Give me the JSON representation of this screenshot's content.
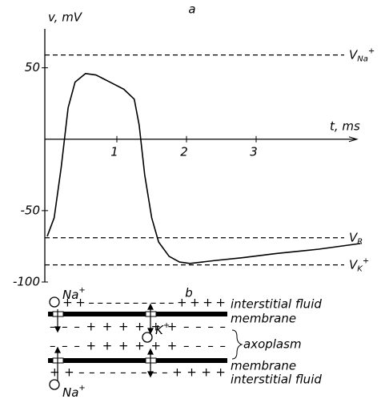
{
  "chart_data": {
    "type": "line",
    "title": "a",
    "y_label": "v, mV",
    "x_label": "t, ms",
    "x": [
      0,
      0.1,
      0.2,
      0.3,
      0.4,
      0.55,
      0.7,
      0.9,
      1.1,
      1.25,
      1.32,
      1.4,
      1.5,
      1.6,
      1.75,
      1.9,
      2.05,
      2.4,
      2.8,
      3.3,
      3.9,
      4.5
    ],
    "series": [
      {
        "color": "#000000",
        "values": [
          -68,
          -55,
          -20,
          22,
          40,
          46,
          45,
          40,
          35,
          28,
          10,
          -25,
          -55,
          -72,
          -82,
          -86,
          -87,
          -85,
          -83,
          -80,
          -77,
          -73
        ]
      }
    ],
    "xlim": [
      0,
      4.6
    ],
    "ylim": [
      -100,
      70
    ],
    "xticks": [
      1,
      2,
      3
    ],
    "yticks": [
      -100,
      -50,
      50
    ],
    "reference_lines": [
      {
        "symbol": "V",
        "subscript": "Na",
        "superscript": "+",
        "value": 59
      },
      {
        "symbol": "V",
        "subscript": "R",
        "superscript": "",
        "value": -69
      },
      {
        "symbol": "V",
        "subscript": "K",
        "superscript": "+",
        "value": -88
      }
    ]
  },
  "diagram": {
    "title": "b",
    "ions": [
      {
        "symbol": "Na",
        "charge": "+"
      },
      {
        "symbol": "K",
        "charge": "+"
      },
      {
        "symbol": "Na",
        "charge": "+"
      }
    ],
    "charges": [
      "+ + + – – – – – – – – – – + + + +",
      "– – – + + + + + + – – – –",
      "– – – + + + + + + – – – –",
      "+ + – – – – – – – – – + + + +"
    ],
    "labels": [
      "interstitial fluid",
      "membrane",
      "axoplasm",
      "membrane",
      "interstitial fluid"
    ]
  }
}
